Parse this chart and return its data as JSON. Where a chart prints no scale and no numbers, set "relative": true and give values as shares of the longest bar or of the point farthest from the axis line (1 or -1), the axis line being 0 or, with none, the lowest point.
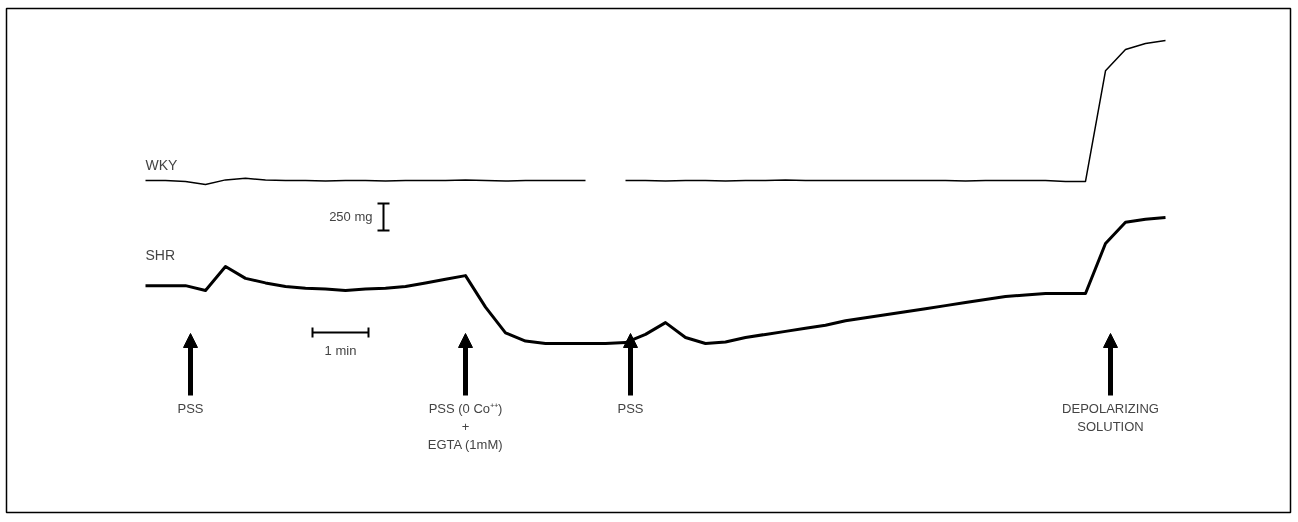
{
  "chart_data": {
    "type": "line",
    "relative": true,
    "categories": [
      null,
      null,
      null,
      null,
      null,
      null,
      null,
      null,
      null,
      null,
      null,
      null,
      null,
      null,
      null,
      null,
      null,
      null,
      null,
      null,
      null,
      null,
      null,
      null,
      null,
      null,
      null,
      null,
      null,
      null,
      null,
      null,
      null,
      null,
      null,
      null,
      null,
      null,
      null,
      null,
      null,
      null,
      null,
      null,
      null,
      null,
      null,
      null,
      null,
      null,
      null,
      null
    ],
    "series": [
      {
        "name": "WKY",
        "color": "#000000",
        "values": [
          0.538,
          0.538,
          0.535,
          0.525,
          0.54,
          0.545,
          0.54,
          0.538,
          0.538,
          0.536,
          0.538,
          0.538,
          0.536,
          0.538,
          0.538,
          0.538,
          0.54,
          0.538,
          0.536,
          0.538,
          0.538,
          0.538,
          0.538,
          null,
          0.538,
          0.538,
          0.536,
          0.538,
          0.538,
          0.536,
          0.538,
          0.538,
          0.54,
          0.538,
          0.538,
          0.538,
          0.538,
          0.538,
          0.538,
          0.538,
          0.538,
          0.536,
          0.538,
          0.538,
          0.538,
          0.538,
          0.535,
          0.535,
          0.9,
          0.97,
          0.99,
          1.0
        ]
      },
      {
        "name": "SHR",
        "color": "#000000",
        "values": [
          0.191,
          0.191,
          0.191,
          0.175,
          0.254,
          0.215,
          0.2,
          0.188,
          0.182,
          0.18,
          0.175,
          0.18,
          0.182,
          0.188,
          0.2,
          0.212,
          0.224,
          0.12,
          0.035,
          0.008,
          0,
          0,
          0,
          0,
          0.003,
          0.03,
          0.069,
          0.02,
          0,
          0.005,
          0.02,
          0.03,
          0.04,
          0.05,
          0.06,
          0.075,
          0.085,
          0.095,
          0.105,
          0.115,
          0.125,
          0.135,
          0.145,
          0.155,
          0.16,
          0.165,
          0.165,
          0.165,
          0.33,
          0.4,
          0.41,
          0.416
        ]
      }
    ],
    "annotations": [
      "250 mg",
      "1 min",
      "PSS",
      "PSS (0 Co⁺⁺)\n+\nEGTA (1mM)",
      "PSS",
      "DEPOLARIZING\nSOLUTION"
    ]
  }
}
